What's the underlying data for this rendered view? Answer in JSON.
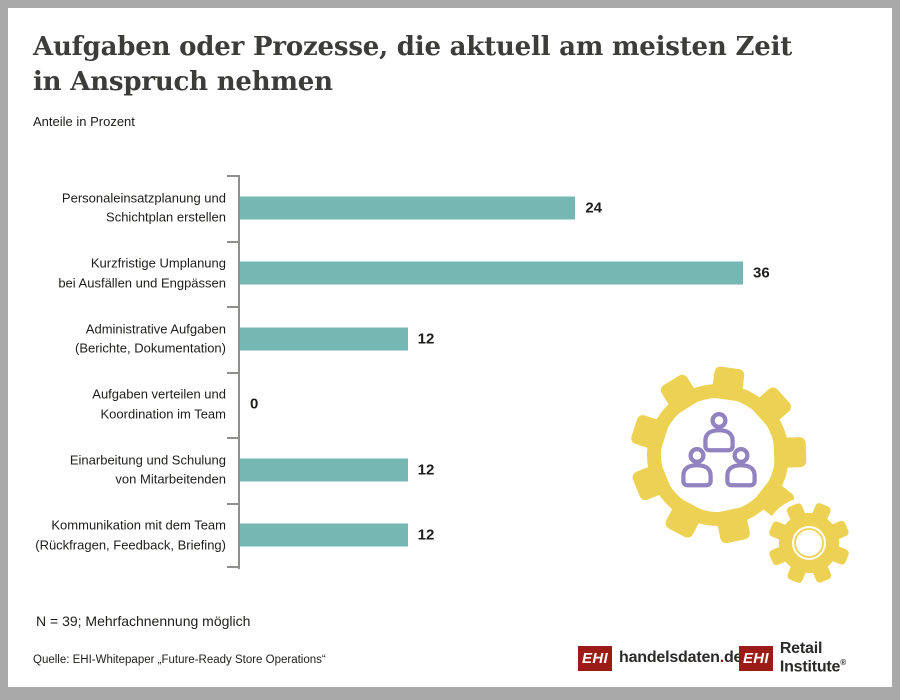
{
  "header": {
    "title": "Aufgaben oder Prozesse, die aktuell am meisten Zeit\nin Anspruch nehmen",
    "subtitle": "Anteile in Prozent"
  },
  "chart_data": {
    "type": "bar",
    "orientation": "horizontal",
    "title": "Aufgaben oder Prozesse, die aktuell am meisten Zeit in Anspruch nehmen",
    "subtitle": "Anteile in Prozent",
    "unit": "Prozent",
    "categories": [
      "Personaleinsatzplanung und\nSchichtplan erstellen",
      "Kurzfristige Umplanung\nbei Ausfällen und Engpässen",
      "Administrative Aufgaben\n(Berichte, Dokumentation)",
      "Aufgaben verteilen und\nKoordination im Team",
      "Einarbeitung und Schulung\nvon Mitarbeitenden",
      "Kommunikation mit dem Team\n(Rückfragen, Feedback, Briefing)"
    ],
    "values": [
      24,
      36,
      12,
      0,
      12,
      12
    ],
    "xlim": [
      0,
      36
    ],
    "grid": false,
    "legend": false,
    "value_labels_shown": true
  },
  "footer": {
    "note": "N = 39; Mehrfachnennung möglich",
    "source": "Quelle: EHI-Whitepaper „Future-Ready Store Operations“"
  },
  "logos": {
    "handelsdaten": {
      "ehi": "EHI",
      "text": "handelsdaten",
      "dot": ".",
      "tld": "de"
    },
    "retail": {
      "ehi": "EHI",
      "text": "Retail Institute",
      "reg": "®"
    }
  },
  "icons": {
    "gear_large": "gear-icon",
    "gear_small": "gear-icon",
    "team": "team-icon"
  },
  "colors": {
    "bar": "#74b7b3",
    "title": "#3c3c3b",
    "gear": "#edd153",
    "person": "#9182c0",
    "logo_red": "#9c1b16",
    "frame": "#a9a9a9"
  }
}
